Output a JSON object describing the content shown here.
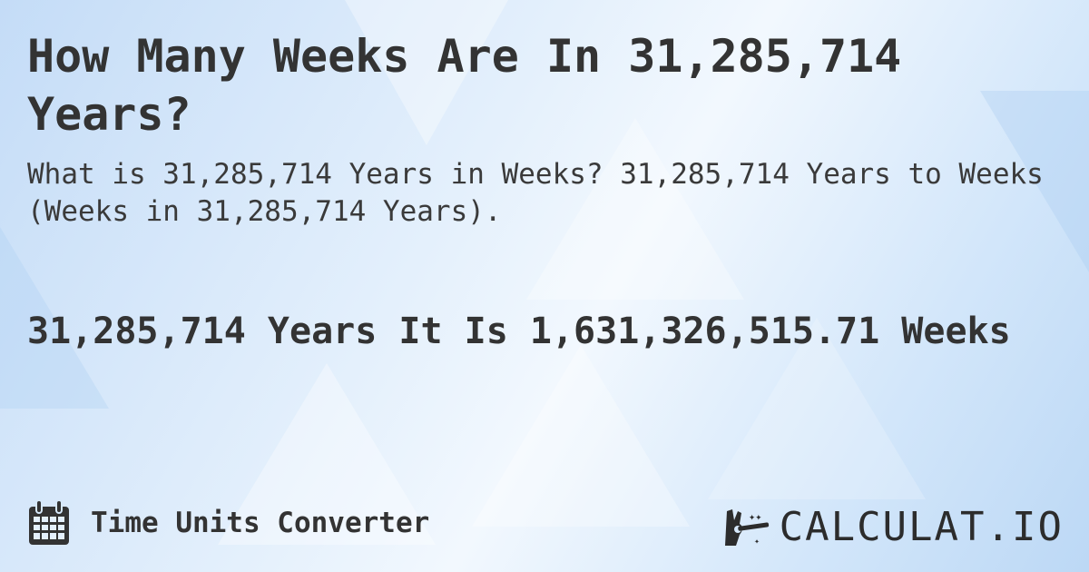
{
  "title": "How Many Weeks Are In 31,285,714 Years?",
  "subtitle": "What is 31,285,714 Years in Weeks? 31,285,714 Years to Weeks (Weeks in 31,285,714 Years).",
  "answer": "31,285,714 Years It Is 1,631,326,515.71 Weeks",
  "footer": {
    "category": "Time Units Converter",
    "icon": "calendar-icon"
  },
  "brand": {
    "name": "CALCULAT.IO",
    "icon": "magic-hand-icon"
  },
  "colors": {
    "text": "#333333",
    "background": "#d6e8fa"
  }
}
